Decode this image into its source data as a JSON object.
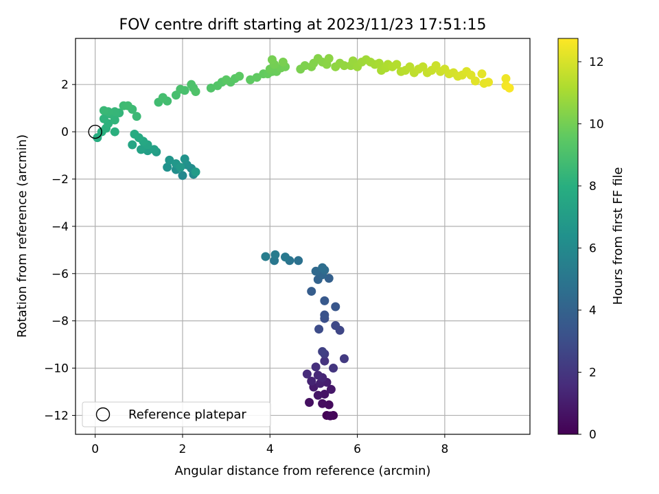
{
  "chart_data": {
    "type": "scatter",
    "title": "FOV centre drift starting at 2023/11/23 17:51:15",
    "xlabel": "Angular distance from reference (arcmin)",
    "ylabel": "Rotation from reference (arcmin)",
    "xlim": [
      -0.45,
      9.95
    ],
    "ylim": [
      -12.8,
      3.95
    ],
    "xticks": [
      0,
      2,
      4,
      6,
      8
    ],
    "yticks": [
      -12,
      -10,
      -8,
      -6,
      -4,
      -2,
      0,
      2
    ],
    "grid": true,
    "colormap": "viridis",
    "colorbar": {
      "label": "Hours from first FF file",
      "range": [
        0,
        12.75
      ],
      "ticks": [
        0,
        2,
        4,
        6,
        8,
        10,
        12
      ]
    },
    "legend": {
      "position": "lower-left",
      "entries": [
        "Reference platepar"
      ]
    },
    "reference_point": {
      "x": 0,
      "y": 0
    },
    "points": [
      [
        5.3,
        -12.0,
        0.05
      ],
      [
        5.45,
        -12.0,
        0.15
      ],
      [
        5.38,
        -12.02,
        0.25
      ],
      [
        5.35,
        -11.55,
        0.35
      ],
      [
        5.2,
        -11.5,
        0.45
      ],
      [
        4.9,
        -11.45,
        0.55
      ],
      [
        5.25,
        -11.1,
        0.65
      ],
      [
        5.1,
        -11.15,
        0.75
      ],
      [
        5.4,
        -10.9,
        0.85
      ],
      [
        5.0,
        -10.8,
        0.95
      ],
      [
        5.3,
        -10.6,
        1.05
      ],
      [
        5.15,
        -10.65,
        1.15
      ],
      [
        4.95,
        -10.55,
        1.25
      ],
      [
        5.2,
        -10.4,
        1.35
      ],
      [
        5.1,
        -10.3,
        1.45
      ],
      [
        4.85,
        -10.25,
        1.55
      ],
      [
        5.05,
        -9.95,
        1.7
      ],
      [
        5.25,
        -9.7,
        1.85
      ],
      [
        5.45,
        -10.0,
        2.0
      ],
      [
        5.7,
        -9.6,
        2.15
      ],
      [
        5.25,
        -9.4,
        2.3
      ],
      [
        5.2,
        -9.3,
        2.45
      ],
      [
        5.6,
        -8.4,
        2.65
      ],
      [
        5.5,
        -8.2,
        2.8
      ],
      [
        5.12,
        -8.35,
        2.95
      ],
      [
        5.25,
        -7.9,
        3.1
      ],
      [
        5.25,
        -7.75,
        3.25
      ],
      [
        5.5,
        -7.4,
        3.4
      ],
      [
        5.25,
        -7.15,
        3.55
      ],
      [
        4.95,
        -6.75,
        3.75
      ],
      [
        5.35,
        -6.2,
        3.9
      ],
      [
        5.1,
        -6.25,
        4.05
      ],
      [
        5.2,
        -6.05,
        4.2
      ],
      [
        5.05,
        -5.9,
        4.35
      ],
      [
        5.25,
        -5.85,
        4.5
      ],
      [
        5.2,
        -5.75,
        4.6
      ],
      [
        4.65,
        -5.45,
        4.75
      ],
      [
        4.45,
        -5.45,
        4.9
      ],
      [
        4.1,
        -5.45,
        5.05
      ],
      [
        4.35,
        -5.3,
        5.15
      ],
      [
        4.12,
        -5.2,
        5.25
      ],
      [
        3.9,
        -5.28,
        5.35
      ],
      [
        2.0,
        -1.85,
        5.9
      ],
      [
        2.25,
        -1.8,
        6.0
      ],
      [
        2.2,
        -1.55,
        6.1
      ],
      [
        1.85,
        -1.6,
        6.2
      ],
      [
        2.1,
        -1.4,
        6.3
      ],
      [
        1.65,
        -1.5,
        6.4
      ],
      [
        2.05,
        -1.15,
        6.5
      ],
      [
        1.7,
        -1.2,
        6.6
      ],
      [
        1.85,
        -1.35,
        6.7
      ],
      [
        1.95,
        -1.5,
        6.8
      ],
      [
        2.3,
        -1.7,
        6.9
      ],
      [
        1.4,
        -0.85,
        7.0
      ],
      [
        1.2,
        -0.8,
        7.1
      ],
      [
        1.35,
        -0.75,
        7.2
      ],
      [
        1.05,
        -0.75,
        7.3
      ],
      [
        1.2,
        -0.55,
        7.4
      ],
      [
        0.85,
        -0.55,
        7.5
      ],
      [
        1.1,
        -0.4,
        7.6
      ],
      [
        1.0,
        -0.25,
        7.7
      ],
      [
        0.9,
        -0.1,
        7.8
      ],
      [
        0.05,
        -0.25,
        7.9
      ],
      [
        0.15,
        0.0,
        8.0
      ],
      [
        0.45,
        0.0,
        8.05
      ],
      [
        0.25,
        0.15,
        8.1
      ],
      [
        0.3,
        0.35,
        8.15
      ],
      [
        0.2,
        0.55,
        8.2
      ],
      [
        0.45,
        0.5,
        8.25
      ],
      [
        0.35,
        0.75,
        8.3
      ],
      [
        0.55,
        0.8,
        8.35
      ],
      [
        0.45,
        0.85,
        8.4
      ],
      [
        0.3,
        0.85,
        8.45
      ],
      [
        0.2,
        0.9,
        8.5
      ],
      [
        0.95,
        0.65,
        8.55
      ],
      [
        0.85,
        0.95,
        8.6
      ],
      [
        0.65,
        1.1,
        8.65
      ],
      [
        0.75,
        1.1,
        8.7
      ],
      [
        1.45,
        1.25,
        8.75
      ],
      [
        1.65,
        1.3,
        8.8
      ],
      [
        1.55,
        1.45,
        8.85
      ],
      [
        1.85,
        1.55,
        8.9
      ],
      [
        2.05,
        1.75,
        8.95
      ],
      [
        1.95,
        1.8,
        9.0
      ],
      [
        2.25,
        1.85,
        9.05
      ],
      [
        2.2,
        2.0,
        9.1
      ],
      [
        2.3,
        1.7,
        9.15
      ],
      [
        2.65,
        1.85,
        9.2
      ],
      [
        2.8,
        1.95,
        9.25
      ],
      [
        2.9,
        2.1,
        9.3
      ],
      [
        3.1,
        2.1,
        9.35
      ],
      [
        3.2,
        2.25,
        9.4
      ],
      [
        3.0,
        2.2,
        9.45
      ],
      [
        3.3,
        2.35,
        9.5
      ],
      [
        3.55,
        2.2,
        9.55
      ],
      [
        3.7,
        2.3,
        9.6
      ],
      [
        3.85,
        2.45,
        9.65
      ],
      [
        3.95,
        2.45,
        9.7
      ],
      [
        4.05,
        2.55,
        9.75
      ],
      [
        4.15,
        2.55,
        9.8
      ],
      [
        4.0,
        2.65,
        9.85
      ],
      [
        4.25,
        2.7,
        9.9
      ],
      [
        4.35,
        2.75,
        9.95
      ],
      [
        4.1,
        2.85,
        10.0
      ],
      [
        4.05,
        3.05,
        10.05
      ],
      [
        4.3,
        2.95,
        10.1
      ],
      [
        4.7,
        2.65,
        10.15
      ],
      [
        4.8,
        2.8,
        10.2
      ],
      [
        4.95,
        2.75,
        10.25
      ],
      [
        5.0,
        2.9,
        10.3
      ],
      [
        5.1,
        3.1,
        10.35
      ],
      [
        5.2,
        2.95,
        10.4
      ],
      [
        5.3,
        2.85,
        10.45
      ],
      [
        5.35,
        3.1,
        10.5
      ],
      [
        5.5,
        2.75,
        10.55
      ],
      [
        5.6,
        2.9,
        10.6
      ],
      [
        5.7,
        2.8,
        10.65
      ],
      [
        5.85,
        2.8,
        10.7
      ],
      [
        5.9,
        3.0,
        10.75
      ],
      [
        6.0,
        2.75,
        10.8
      ],
      [
        6.1,
        2.95,
        10.85
      ],
      [
        6.2,
        3.05,
        10.9
      ],
      [
        6.3,
        2.95,
        10.95
      ],
      [
        6.4,
        2.85,
        11.0
      ],
      [
        6.5,
        2.9,
        11.05
      ],
      [
        6.55,
        2.6,
        11.1
      ],
      [
        6.65,
        2.7,
        11.15
      ],
      [
        6.7,
        2.85,
        11.2
      ],
      [
        6.8,
        2.75,
        11.25
      ],
      [
        6.9,
        2.85,
        11.3
      ],
      [
        7.0,
        2.55,
        11.35
      ],
      [
        7.1,
        2.6,
        11.4
      ],
      [
        7.2,
        2.75,
        11.45
      ],
      [
        7.3,
        2.5,
        11.5
      ],
      [
        7.4,
        2.65,
        11.55
      ],
      [
        7.5,
        2.75,
        11.6
      ],
      [
        7.6,
        2.5,
        11.65
      ],
      [
        7.7,
        2.6,
        11.7
      ],
      [
        7.8,
        2.8,
        11.75
      ],
      [
        7.9,
        2.55,
        11.8
      ],
      [
        8.0,
        2.65,
        11.85
      ],
      [
        8.1,
        2.45,
        11.9
      ],
      [
        8.2,
        2.5,
        11.95
      ],
      [
        8.3,
        2.35,
        12.0
      ],
      [
        8.4,
        2.4,
        12.05
      ],
      [
        8.5,
        2.55,
        12.1
      ],
      [
        8.6,
        2.4,
        12.15
      ],
      [
        8.7,
        2.15,
        12.2
      ],
      [
        8.85,
        2.45,
        12.25
      ],
      [
        8.9,
        2.05,
        12.3
      ],
      [
        9.0,
        2.1,
        12.35
      ],
      [
        9.4,
        2.25,
        12.45
      ],
      [
        9.4,
        1.95,
        12.55
      ],
      [
        9.48,
        1.85,
        12.65
      ]
    ]
  }
}
